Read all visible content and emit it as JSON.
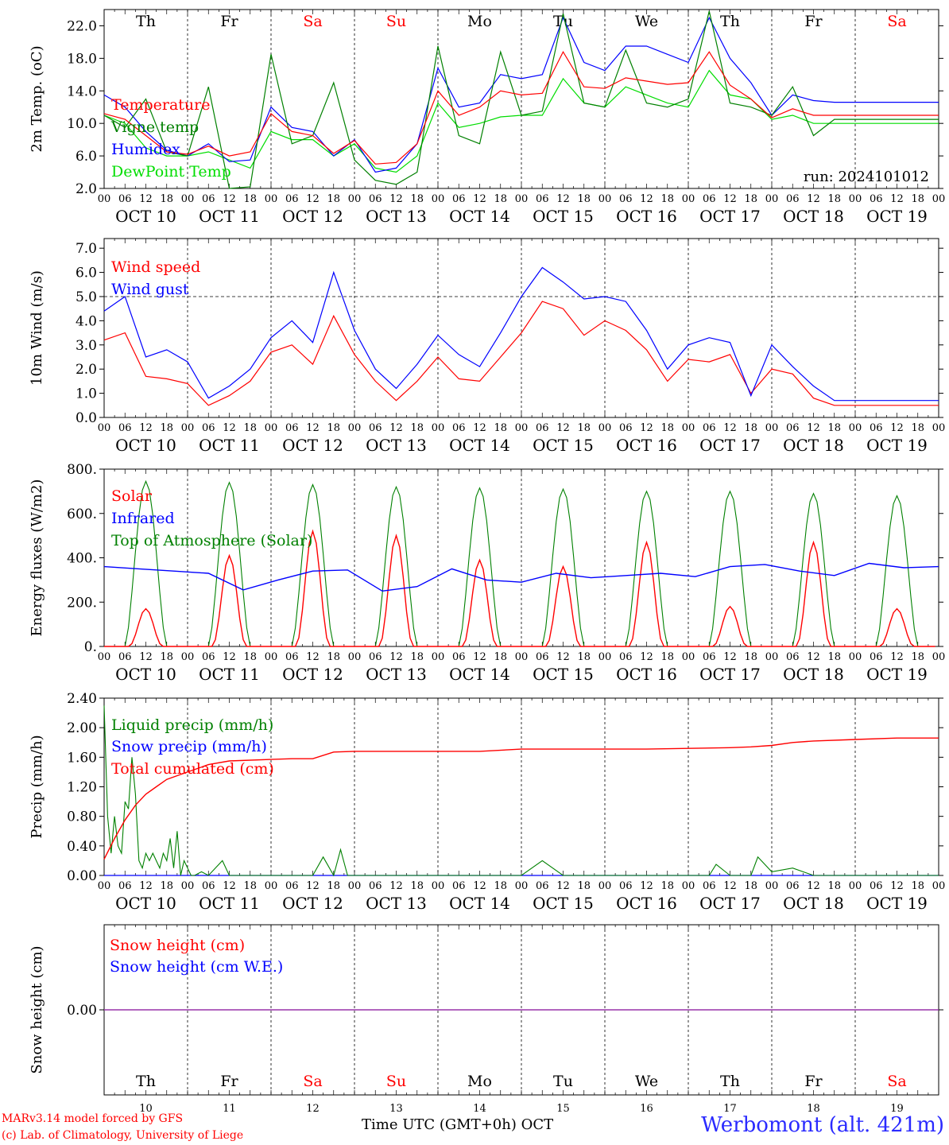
{
  "chart_data": [
    {
      "id": "temp",
      "type": "line",
      "ylabel": "2m Temp. (oC)",
      "ylim": [
        2,
        24
      ],
      "yticks": [
        "2.0",
        "6.0",
        "10.0",
        "14.0",
        "18.0",
        "22.0"
      ],
      "ytick_values": [
        2,
        6,
        10,
        14,
        18,
        22
      ],
      "grid": "vertical dotted lines at 00 UTC",
      "legend": [
        "Temperature",
        "Vigne temp",
        "Humidex",
        "DewPoint Temp"
      ],
      "annotation": "run: 2024101012",
      "series": [
        {
          "name": "Temperature",
          "color": "#ff0000",
          "x": [
            0,
            6,
            12,
            18,
            24,
            30,
            36,
            42,
            48,
            54,
            60,
            66,
            72,
            78,
            84,
            90,
            96,
            102,
            108,
            114,
            120,
            126,
            132,
            138,
            144,
            150,
            156,
            162,
            168,
            174,
            180,
            186,
            192,
            198,
            204,
            210,
            216,
            222,
            228,
            234,
            240
          ],
          "values": [
            11.2,
            10.5,
            8.5,
            6.5,
            6.2,
            7.2,
            6.0,
            6.5,
            11.2,
            9.0,
            8.5,
            6.3,
            7.9,
            5.0,
            5.2,
            7.5,
            14.0,
            11.0,
            12.0,
            14.0,
            13.5,
            13.7,
            18.8,
            14.5,
            14.3,
            15.6,
            15.2,
            14.8,
            15.0,
            18.8,
            14.7,
            13.0,
            10.7,
            11.8,
            11.0,
            11.0,
            11.0,
            11.0,
            11.0,
            11.0,
            11.0
          ]
        },
        {
          "name": "Vigne temp",
          "color": "#008000",
          "x": [
            0,
            6,
            12,
            18,
            24,
            30,
            36,
            42,
            48,
            54,
            60,
            66,
            72,
            78,
            84,
            90,
            96,
            102,
            108,
            114,
            120,
            126,
            132,
            138,
            144,
            150,
            156,
            162,
            168,
            174,
            180,
            186,
            192,
            198,
            204,
            210,
            216,
            222,
            228,
            234,
            240
          ],
          "values": [
            11.0,
            9.5,
            13.0,
            6.5,
            6.0,
            14.5,
            2.0,
            2.2,
            18.5,
            7.5,
            8.5,
            15.0,
            5.5,
            3.0,
            2.5,
            4.0,
            19.5,
            8.5,
            7.5,
            18.8,
            11.0,
            11.5,
            23.5,
            12.5,
            12.0,
            19.0,
            12.5,
            12.0,
            13.0,
            23.8,
            12.5,
            12.0,
            11.0,
            14.5,
            8.5,
            10.5,
            10.5,
            10.5,
            10.5,
            10.5,
            10.5
          ]
        },
        {
          "name": "Humidex",
          "color": "#0000ff",
          "x": [
            0,
            6,
            12,
            18,
            24,
            30,
            36,
            42,
            48,
            54,
            60,
            66,
            72,
            78,
            84,
            90,
            96,
            102,
            108,
            114,
            120,
            126,
            132,
            138,
            144,
            150,
            156,
            162,
            168,
            174,
            180,
            186,
            192,
            198,
            204,
            210,
            216,
            222,
            228,
            234,
            240
          ],
          "values": [
            13.5,
            12.0,
            9.0,
            6.7,
            6.0,
            7.5,
            5.3,
            5.5,
            12.0,
            9.5,
            9.0,
            6.0,
            8.0,
            4.0,
            4.5,
            7.5,
            16.8,
            12.0,
            12.5,
            16.0,
            15.5,
            16.0,
            23.0,
            17.5,
            16.5,
            19.5,
            19.5,
            18.5,
            17.5,
            23.0,
            18.0,
            15.0,
            11.0,
            13.5,
            12.8,
            12.6,
            12.6,
            12.6,
            12.6,
            12.6,
            12.6
          ]
        },
        {
          "name": "DewPoint Temp",
          "color": "#00dd00",
          "x": [
            0,
            6,
            12,
            18,
            24,
            30,
            36,
            42,
            48,
            54,
            60,
            66,
            72,
            78,
            84,
            90,
            96,
            102,
            108,
            114,
            120,
            126,
            132,
            138,
            144,
            150,
            156,
            162,
            168,
            174,
            180,
            186,
            192,
            198,
            204,
            210,
            216,
            222,
            228,
            234,
            240
          ],
          "values": [
            11.0,
            10.0,
            7.0,
            6.0,
            6.0,
            6.5,
            5.5,
            4.5,
            9.0,
            8.0,
            8.0,
            6.0,
            7.5,
            4.5,
            4.0,
            6.0,
            12.5,
            9.5,
            10.0,
            10.8,
            11.0,
            11.0,
            15.5,
            12.5,
            12.0,
            14.5,
            13.5,
            12.5,
            12.0,
            16.5,
            13.5,
            13.0,
            10.5,
            11.0,
            10.0,
            10.0,
            10.0,
            10.0,
            10.0,
            10.0,
            10.0
          ]
        }
      ]
    },
    {
      "id": "wind",
      "type": "line",
      "ylabel": "10m Wind (m/s)",
      "ylim": [
        0,
        7.4
      ],
      "yticks": [
        "0.0",
        "1.0",
        "2.0",
        "3.0",
        "4.0",
        "5.0",
        "6.0",
        "7.0"
      ],
      "ytick_values": [
        0,
        1,
        2,
        3,
        4,
        5,
        6,
        7
      ],
      "reference_line": 5.0,
      "legend": [
        "Wind speed",
        "Wind gust"
      ],
      "series": [
        {
          "name": "Wind speed",
          "color": "#ff0000",
          "x": [
            0,
            6,
            12,
            18,
            24,
            30,
            36,
            42,
            48,
            54,
            60,
            66,
            72,
            78,
            84,
            90,
            96,
            102,
            108,
            114,
            120,
            126,
            132,
            138,
            144,
            150,
            156,
            162,
            168,
            174,
            180,
            186,
            192,
            198,
            204,
            210,
            216,
            222,
            228,
            234,
            240
          ],
          "values": [
            3.2,
            3.5,
            1.7,
            1.6,
            1.4,
            0.5,
            0.9,
            1.5,
            2.7,
            3.0,
            2.2,
            4.2,
            2.6,
            1.5,
            0.7,
            1.5,
            2.5,
            1.6,
            1.5,
            2.5,
            3.5,
            4.8,
            4.5,
            3.4,
            4.0,
            3.6,
            2.8,
            1.5,
            2.4,
            2.3,
            2.6,
            1.0,
            2.0,
            1.8,
            0.8,
            0.5,
            0.5,
            0.5,
            0.5,
            0.5,
            0.5
          ]
        },
        {
          "name": "Wind gust",
          "color": "#0000ff",
          "x": [
            0,
            6,
            12,
            18,
            24,
            30,
            36,
            42,
            48,
            54,
            60,
            66,
            72,
            78,
            84,
            90,
            96,
            102,
            108,
            114,
            120,
            126,
            132,
            138,
            144,
            150,
            156,
            162,
            168,
            174,
            180,
            186,
            192,
            198,
            204,
            210,
            216,
            222,
            228,
            234,
            240
          ],
          "values": [
            4.4,
            5.0,
            2.5,
            2.8,
            2.3,
            0.8,
            1.3,
            2.0,
            3.3,
            4.0,
            3.1,
            6.0,
            3.6,
            2.0,
            1.2,
            2.2,
            3.4,
            2.6,
            2.1,
            3.5,
            5.0,
            6.2,
            5.6,
            4.9,
            5.0,
            4.8,
            3.6,
            2.0,
            3.0,
            3.3,
            3.1,
            0.9,
            3.0,
            2.1,
            1.3,
            0.7,
            0.7,
            0.7,
            0.7,
            0.7,
            0.7
          ]
        }
      ]
    },
    {
      "id": "energy",
      "type": "line",
      "ylabel": "Energy fluxes (W/m2)",
      "ylim": [
        0,
        800
      ],
      "yticks": [
        "0.",
        "200.",
        "400.",
        "600.",
        "800."
      ],
      "ytick_values": [
        0,
        200,
        400,
        600,
        800
      ],
      "legend": [
        "Solar",
        "Infrared",
        "Top of Atmosphere (Solar)"
      ],
      "toa_peaks": [
        745,
        740,
        730,
        720,
        715,
        710,
        700,
        700,
        690,
        680
      ],
      "solar_peaks": [
        170,
        410,
        520,
        500,
        390,
        360,
        470,
        180,
        470,
        170
      ],
      "infrared": [
        360,
        350,
        340,
        330,
        255,
        300,
        340,
        345,
        250,
        270,
        350,
        300,
        290,
        330,
        310,
        320,
        330,
        315,
        360,
        370,
        340,
        320,
        375,
        355,
        360
      ],
      "series_colors": {
        "Solar": "#ff0000",
        "Infrared": "#0000ff",
        "Top of Atmosphere (Solar)": "#008000"
      }
    },
    {
      "id": "precip",
      "type": "line",
      "ylabel": "Precip (mm/h)",
      "ylim": [
        0,
        2.4
      ],
      "yticks": [
        "0.00",
        "0.40",
        "0.80",
        "1.20",
        "1.60",
        "2.00",
        "2.40"
      ],
      "ytick_values": [
        0,
        0.4,
        0.8,
        1.2,
        1.6,
        2.0,
        2.4
      ],
      "legend": [
        "Liquid precip (mm/h)",
        "Snow precip (mm/h)",
        "Total cumulated (cm)"
      ],
      "series": [
        {
          "name": "Total cumulated (cm)",
          "color": "#ff0000",
          "x": [
            0,
            3,
            6,
            9,
            12,
            15,
            18,
            24,
            30,
            36,
            48,
            54,
            60,
            66,
            72,
            84,
            96,
            108,
            120,
            132,
            144,
            156,
            168,
            180,
            186,
            192,
            198,
            204,
            216,
            228,
            240
          ],
          "values": [
            0.22,
            0.5,
            0.75,
            0.95,
            1.1,
            1.2,
            1.3,
            1.4,
            1.5,
            1.55,
            1.57,
            1.58,
            1.58,
            1.67,
            1.68,
            1.68,
            1.68,
            1.68,
            1.71,
            1.71,
            1.71,
            1.71,
            1.72,
            1.73,
            1.74,
            1.76,
            1.8,
            1.82,
            1.84,
            1.86,
            1.86
          ]
        },
        {
          "name": "Liquid precip (mm/h)",
          "color": "#008000",
          "x": [
            0,
            1,
            2,
            3,
            4,
            5,
            6,
            7,
            8,
            9,
            10,
            11,
            12,
            13,
            14,
            15,
            16,
            17,
            18,
            19,
            20,
            21,
            22,
            23,
            24,
            25,
            26,
            28,
            30,
            34,
            36,
            42,
            48,
            60,
            63,
            66,
            68,
            70,
            72,
            96,
            108,
            114,
            120,
            126,
            132,
            144,
            156,
            168,
            174,
            176,
            180,
            186,
            188,
            192,
            198,
            204,
            210,
            216,
            222,
            240
          ],
          "values": [
            2.3,
            0.8,
            0.3,
            0.8,
            0.4,
            0.3,
            1.0,
            0.9,
            1.6,
            1.1,
            0.2,
            0.1,
            0.3,
            0.2,
            0.3,
            0.2,
            0.1,
            0.3,
            0.2,
            0.5,
            0.1,
            0.6,
            0.0,
            0.2,
            0.1,
            0.0,
            0.0,
            0.05,
            0.0,
            0.2,
            0.0,
            0.0,
            0.0,
            0.0,
            0.25,
            0.0,
            0.35,
            0.0,
            0.0,
            0.0,
            0.0,
            0.0,
            0.0,
            0.2,
            0.0,
            0.0,
            0.0,
            0.0,
            0.0,
            0.15,
            0.0,
            0.0,
            0.25,
            0.05,
            0.1,
            0.0,
            0.0,
            0.0,
            0.0,
            0.0
          ]
        },
        {
          "name": "Snow precip (mm/h)",
          "color": "#0000ff",
          "x": [
            0,
            240
          ],
          "values": [
            0,
            0
          ]
        }
      ]
    },
    {
      "id": "snow",
      "type": "line",
      "ylabel": "Snow height (cm)",
      "yticks": [
        "0.00"
      ],
      "ytick_values": [
        0
      ],
      "legend": [
        "Snow height (cm)",
        "Snow height (cm W.E.)"
      ],
      "series": [
        {
          "name": "Snow height (cm)",
          "color": "#ff0000",
          "x": [
            0,
            240
          ],
          "values": [
            0,
            0
          ]
        },
        {
          "name": "Snow height (cm W.E.)",
          "color": "#0000ff",
          "x": [
            0,
            240
          ],
          "values": [
            0,
            0
          ]
        }
      ]
    }
  ],
  "days": [
    {
      "abbr": "Th",
      "num": "10",
      "date": "OCT 10",
      "weekend": false
    },
    {
      "abbr": "Fr",
      "num": "11",
      "date": "OCT 11",
      "weekend": false
    },
    {
      "abbr": "Sa",
      "num": "12",
      "date": "OCT 12",
      "weekend": true
    },
    {
      "abbr": "Su",
      "num": "13",
      "date": "OCT 13",
      "weekend": true
    },
    {
      "abbr": "Mo",
      "num": "14",
      "date": "OCT 14",
      "weekend": false
    },
    {
      "abbr": "Tu",
      "num": "15",
      "date": "OCT 15",
      "weekend": false
    },
    {
      "abbr": "We",
      "num": "16",
      "date": "OCT 16",
      "weekend": false
    },
    {
      "abbr": "Th",
      "num": "17",
      "date": "OCT 17",
      "weekend": false
    },
    {
      "abbr": "Fr",
      "num": "18",
      "date": "OCT 18",
      "weekend": false
    },
    {
      "abbr": "Sa",
      "num": "19",
      "date": "OCT 19",
      "weekend": true
    }
  ],
  "hour_ticks": [
    "00",
    "06",
    "12",
    "18"
  ],
  "colors": {
    "weekend": "#ff0000",
    "weekday": "#000000"
  },
  "footer": {
    "credit_line1": "MARv3.14 model forced by GFS",
    "credit_line2": "(c) Lab. of Climatology, University of Liege",
    "xlabel": "Time UTC (GMT+0h)",
    "month": "OCT",
    "station": "Werbomont (alt. 421m)"
  }
}
